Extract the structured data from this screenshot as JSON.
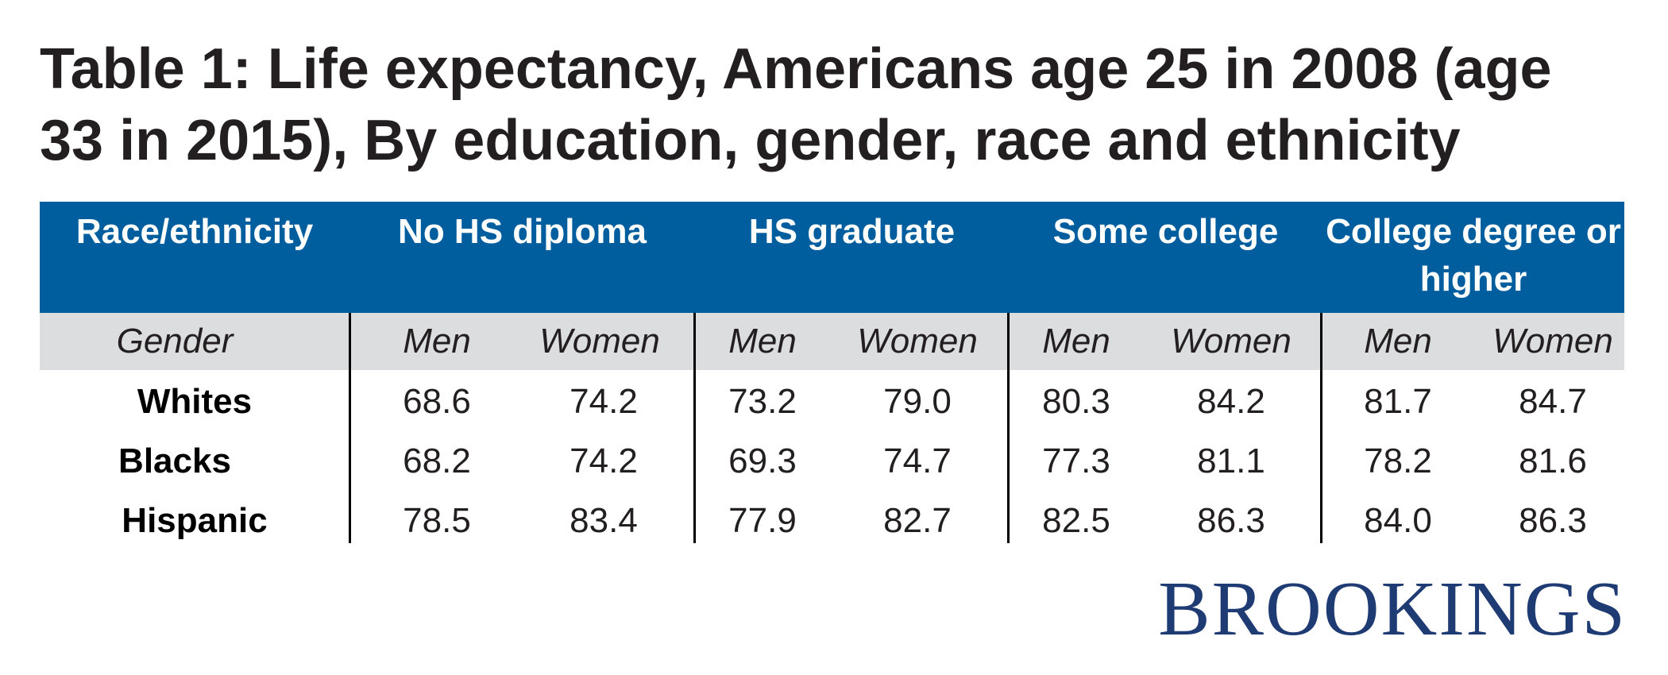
{
  "chart_data": {
    "type": "table",
    "title": "Table 1: Life expectancy, Americans age 25 in 2008 (age 33 in 2015), By education, gender, race and ethnicity",
    "row_header": "Race/ethnicity",
    "subheader_label": "Gender",
    "education_levels": [
      "No HS diploma",
      "HS graduate",
      "Some college",
      "College degree or higher"
    ],
    "genders": [
      "Men",
      "Women"
    ],
    "rows": [
      {
        "label": "Whites",
        "values": [
          "68.6",
          "74.2",
          "73.2",
          "79.0",
          "80.3",
          "84.2",
          "81.7",
          "84.7"
        ]
      },
      {
        "label": "Blacks",
        "values": [
          "68.2",
          "74.2",
          "69.3",
          "74.7",
          "77.3",
          "81.1",
          "78.2",
          "81.6"
        ]
      },
      {
        "label": "Hispanic",
        "values": [
          "78.5",
          "83.4",
          "77.9",
          "82.7",
          "82.5",
          "86.3",
          "84.0",
          "86.3"
        ]
      }
    ],
    "colors": {
      "header_background": "#005e9e",
      "subheader_background": "#dcdddf",
      "header_text": "#ffffff"
    }
  },
  "brand": {
    "logo_text": "BROOKINGS",
    "logo_color": "#1f3b73"
  }
}
